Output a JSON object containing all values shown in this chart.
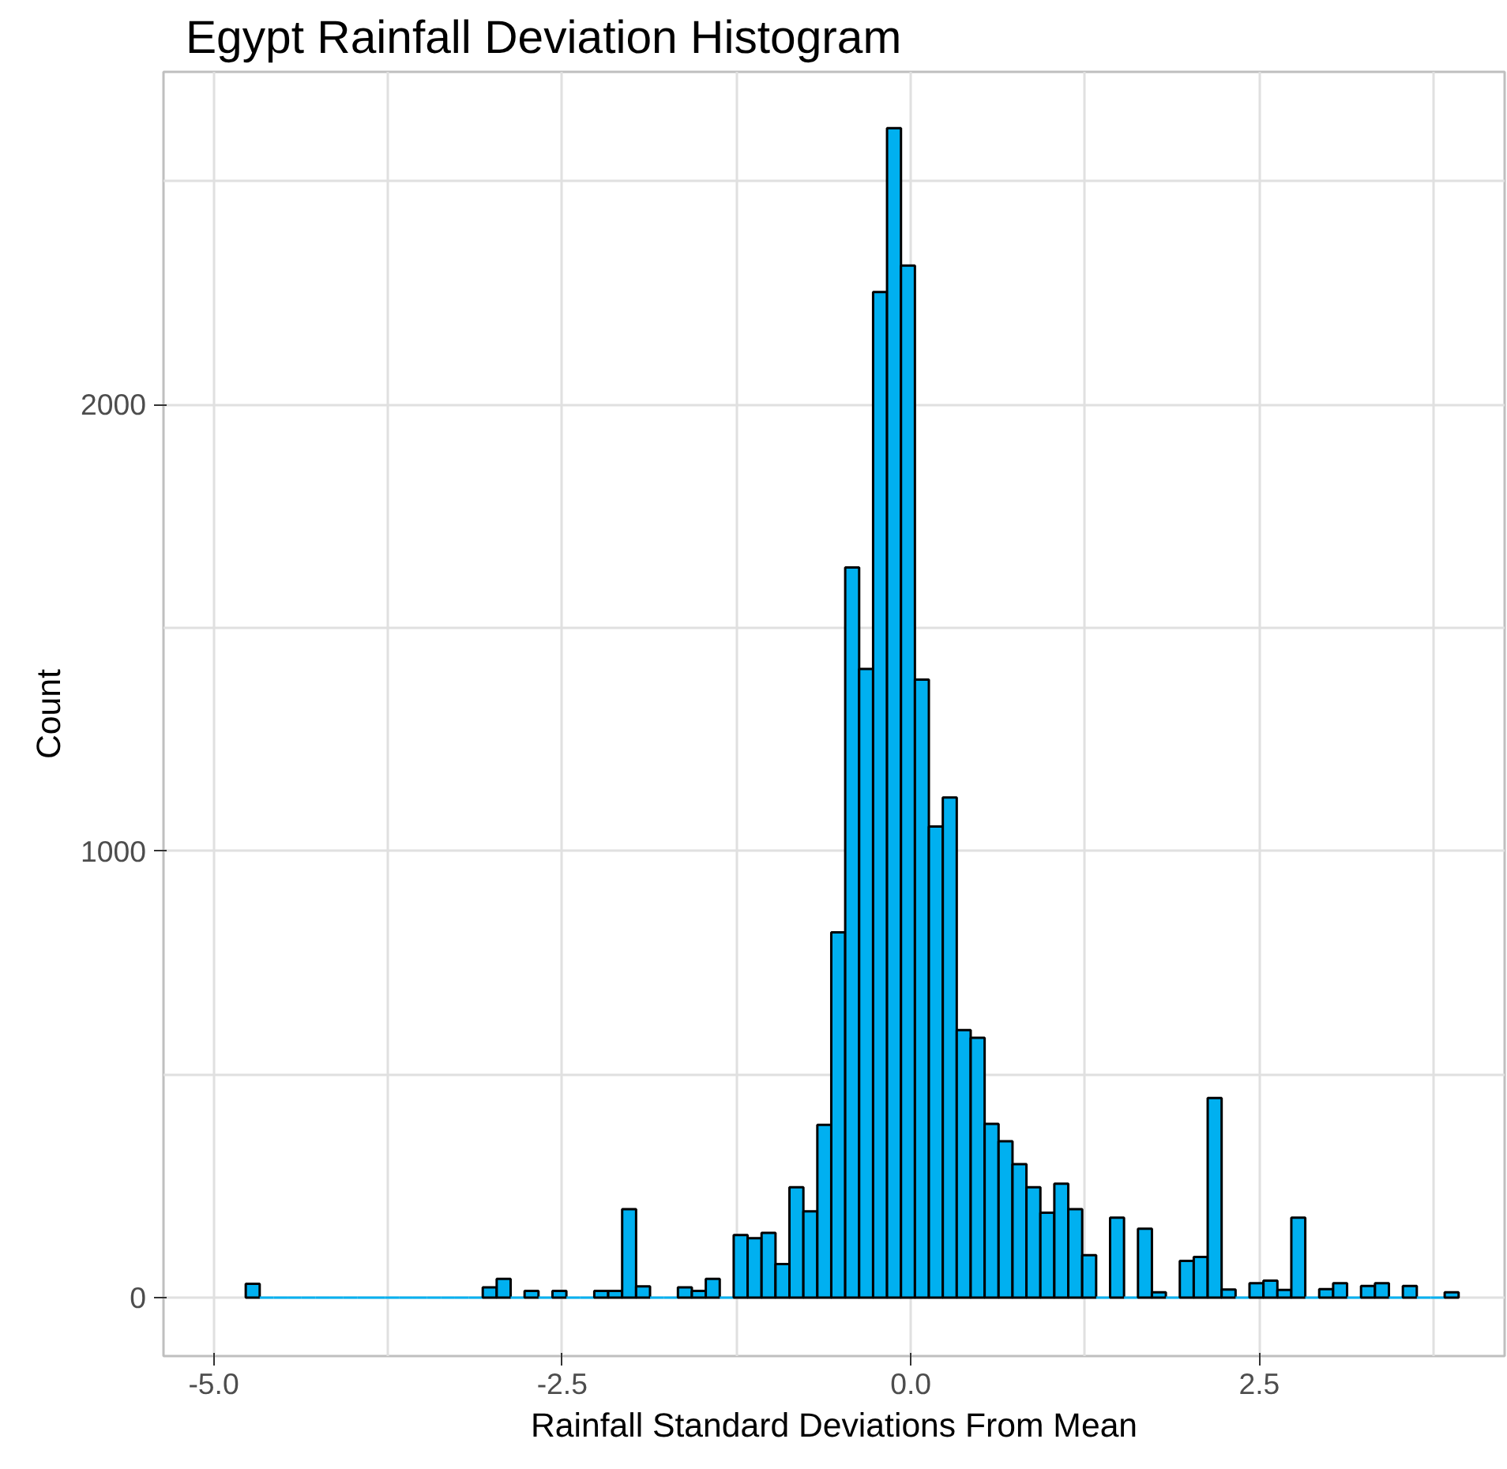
{
  "chart_data": {
    "type": "histogram",
    "title": "Egypt Rainfall Deviation Histogram",
    "xlabel": "Rainfall Standard Deviations From Mean",
    "ylabel": "Count",
    "color": "#00b0f0",
    "bins": [
      -4.77,
      -4.67,
      -4.57,
      -4.47,
      -4.37,
      -4.27,
      -4.17,
      -4.07,
      -3.97,
      -3.87,
      -3.77,
      -3.67,
      -3.57,
      -3.47,
      -3.37,
      -3.27,
      -3.17,
      -3.07,
      -2.97,
      -2.87,
      -2.77,
      -2.67,
      -2.57,
      -2.47,
      -2.37,
      -2.27,
      -2.17,
      -2.07,
      -1.97,
      -1.87,
      -1.77,
      -1.67,
      -1.57,
      -1.47,
      -1.37,
      -1.27,
      -1.17,
      -1.07,
      -0.97,
      -0.87,
      -0.77,
      -0.67,
      -0.57,
      -0.47,
      -0.37,
      -0.27,
      -0.17,
      -0.07,
      0.03,
      0.13,
      0.23,
      0.33,
      0.43,
      0.53,
      0.63,
      0.73,
      0.83,
      0.93,
      1.03,
      1.13,
      1.23,
      1.33,
      1.43,
      1.53,
      1.63,
      1.73,
      1.83,
      1.93,
      2.03,
      2.13,
      2.23,
      2.33,
      2.43,
      2.53,
      2.63,
      2.73,
      2.83,
      2.93,
      3.03,
      3.13,
      3.23,
      3.33,
      3.43,
      3.53,
      3.63,
      3.73,
      3.83,
      3.93
    ],
    "values": [
      31,
      0,
      0,
      0,
      0,
      0,
      0,
      0,
      0,
      0,
      0,
      0,
      0,
      0,
      0,
      0,
      0,
      23,
      42,
      0,
      15,
      0,
      15,
      0,
      0,
      15,
      15,
      198,
      25,
      0,
      0,
      23,
      15,
      42,
      0,
      140,
      133,
      145,
      75,
      247,
      193,
      387,
      818,
      1635,
      1408,
      2252,
      2619,
      2311,
      1384,
      1055,
      1120,
      599,
      582,
      389,
      350,
      299,
      247,
      190,
      255,
      198,
      95,
      0,
      179,
      0,
      154,
      12,
      0,
      82,
      91,
      447,
      18,
      0,
      32,
      38,
      17,
      179,
      0,
      19,
      32,
      0,
      26,
      32,
      0,
      26,
      0,
      0,
      12
    ],
    "xlim": [
      -5.36,
      4.26
    ],
    "ylim": [
      -131,
      2745
    ],
    "xticks": [
      {
        "value": -5,
        "label": "-5.0"
      },
      {
        "value": -3.75,
        "label": null
      },
      {
        "value": -2.5,
        "label": "-2.5"
      },
      {
        "value": -1.25,
        "label": null
      },
      {
        "value": 0,
        "label": "0.0"
      },
      {
        "value": 1.25,
        "label": null
      },
      {
        "value": 2.5,
        "label": "2.5"
      },
      {
        "value": 3.75,
        "label": null
      }
    ],
    "yticks": [
      0,
      {
        "value": 500,
        "label": null
      },
      1000,
      {
        "value": 1500,
        "label": null
      },
      2000,
      {
        "value": 2500,
        "label": null
      }
    ],
    "grid": true
  }
}
